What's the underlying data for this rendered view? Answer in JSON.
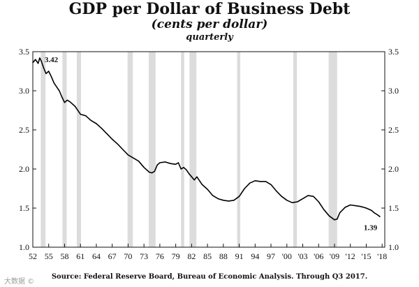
{
  "chart_data": {
    "type": "line",
    "title": "GDP per Dollar of Business Debt",
    "subtitle": "(cents per dollar)",
    "frequency_label": "quarterly",
    "source": "Source:  Federal Reserve Board, Bureau of Economic Analysis.  Through Q3 2017.",
    "xlim": [
      1952,
      2018.5
    ],
    "ylim": [
      1.0,
      3.5
    ],
    "y_ticks": [
      "1.0",
      "1.5",
      "2.0",
      "2.5",
      "3.0",
      "3.5"
    ],
    "x_ticks": [
      "52",
      "55",
      "58",
      "61",
      "64",
      "67",
      "70",
      "73",
      "76",
      "79",
      "82",
      "85",
      "88",
      "91",
      "94",
      "97",
      "'00",
      "'03",
      "'06",
      "'09",
      "'12",
      "'15",
      "'18"
    ],
    "recessions": [
      [
        1953.5,
        1954.4
      ],
      [
        1957.6,
        1958.4
      ],
      [
        1960.3,
        1961.1
      ],
      [
        1969.9,
        1970.9
      ],
      [
        1973.9,
        1975.2
      ],
      [
        1980.0,
        1980.6
      ],
      [
        1981.6,
        1982.9
      ],
      [
        1990.6,
        1991.2
      ],
      [
        2001.2,
        2001.9
      ],
      [
        2007.9,
        2009.5
      ]
    ],
    "series": [
      {
        "x": [
          1952.0,
          1952.5,
          1953.0,
          1953.3,
          1953.6,
          1954.0,
          1954.5,
          1955.0,
          1955.5,
          1956.0,
          1956.5,
          1957.0,
          1957.5,
          1958.0,
          1958.5,
          1959.0,
          1960.0,
          1961.0,
          1962.0,
          1963.0,
          1964.0,
          1965.0,
          1966.0,
          1967.0,
          1968.0,
          1969.0,
          1970.0,
          1971.0,
          1972.0,
          1973.0,
          1974.0,
          1974.5,
          1975.0,
          1975.5,
          1976.0,
          1977.0,
          1978.0,
          1979.0,
          1979.5,
          1980.0,
          1980.5,
          1981.0,
          1981.5,
          1982.0,
          1982.5,
          1983.0,
          1984.0,
          1985.0,
          1986.0,
          1987.0,
          1988.0,
          1989.0,
          1990.0,
          1991.0,
          1992.0,
          1993.0,
          1994.0,
          1995.0,
          1996.0,
          1997.0,
          1998.0,
          1999.0,
          2000.0,
          2001.0,
          2002.0,
          2003.0,
          2004.0,
          2005.0,
          2006.0,
          2007.0,
          2008.0,
          2009.0,
          2009.5,
          2010.0,
          2011.0,
          2012.0,
          2013.0,
          2014.0,
          2015.0,
          2016.0,
          2016.5,
          2017.0,
          2017.6
        ],
        "y": [
          3.36,
          3.4,
          3.35,
          3.42,
          3.38,
          3.3,
          3.22,
          3.25,
          3.18,
          3.1,
          3.05,
          3.0,
          2.92,
          2.85,
          2.88,
          2.86,
          2.8,
          2.7,
          2.68,
          2.62,
          2.58,
          2.52,
          2.45,
          2.38,
          2.32,
          2.25,
          2.18,
          2.14,
          2.1,
          2.02,
          1.96,
          1.95,
          1.97,
          2.05,
          2.08,
          2.09,
          2.07,
          2.06,
          2.08,
          2.0,
          2.02,
          1.99,
          1.94,
          1.9,
          1.86,
          1.9,
          1.8,
          1.74,
          1.66,
          1.62,
          1.6,
          1.59,
          1.6,
          1.65,
          1.75,
          1.82,
          1.85,
          1.84,
          1.84,
          1.8,
          1.72,
          1.65,
          1.6,
          1.57,
          1.58,
          1.62,
          1.66,
          1.65,
          1.58,
          1.48,
          1.4,
          1.35,
          1.36,
          1.44,
          1.51,
          1.54,
          1.53,
          1.52,
          1.5,
          1.47,
          1.44,
          1.42,
          1.39
        ]
      }
    ],
    "annotations": [
      {
        "text": "3.42",
        "x": 1953.3,
        "y": 3.42
      },
      {
        "text": "1.39",
        "x": 2017.6,
        "y": 1.39
      }
    ]
  },
  "watermark": "大数据 ©"
}
